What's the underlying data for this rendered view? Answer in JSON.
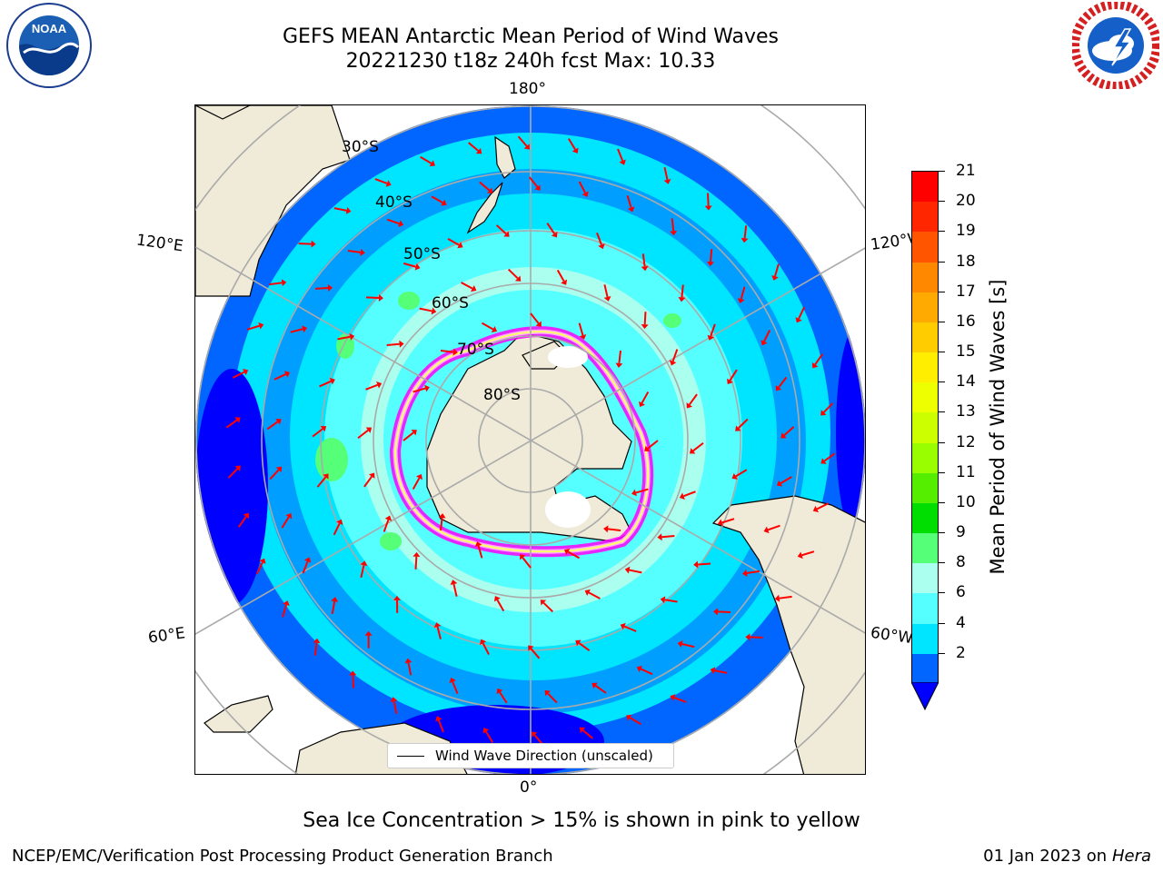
{
  "header": {
    "title_line1": "GEFS MEAN Antarctic Mean Period of Wind Waves",
    "title_line2": "20221230 t18z 240h fcst   Max: 10.33"
  },
  "logos": {
    "left_icon": "noaa-logo",
    "left_text": "NOAA",
    "right_icon": "nws-logo"
  },
  "map": {
    "projection": "south-polar-stereographic",
    "longitude_labels": {
      "top": "180°",
      "bottom": "0°",
      "upper_left": "120°E",
      "upper_right": "120°W",
      "lower_left": "60°E",
      "lower_right": "60°W"
    },
    "latitude_labels": [
      "30°S",
      "40°S",
      "50°S",
      "60°S",
      "70°S",
      "80°S"
    ],
    "land_color": "#efebd8",
    "ocean_colors": {
      "band_2_4": "#0066ff",
      "band_4_6": "#00e5ff",
      "band_6_8": "#55ffff",
      "band_8_9": "#aaffee",
      "band_9_10": "#55ff77",
      "deep_blue": "#0000ff"
    },
    "arrow_color": "#ff0000",
    "sea_ice_colors": [
      "#ff00ff",
      "#ffaaff",
      "#ffff66"
    ],
    "legend_entry": "Wind Wave Direction (unscaled)"
  },
  "colorbar": {
    "label": "Mean Period of Wind Waves [s]",
    "ticks": [
      "21",
      "20",
      "19",
      "18",
      "17",
      "16",
      "15",
      "14",
      "13",
      "12",
      "11",
      "10",
      "9",
      "8",
      "6",
      "4",
      "2"
    ],
    "colors": [
      "#ff0000",
      "#ff2600",
      "#ff5500",
      "#ff8800",
      "#ffaa00",
      "#ffcc00",
      "#ffee00",
      "#eeff00",
      "#ccff00",
      "#99ff00",
      "#55ee00",
      "#00dd00",
      "#55ff77",
      "#aaffee",
      "#55ffff",
      "#00e5ff",
      "#0066ff"
    ],
    "extend_color": "#0000ff"
  },
  "notes": {
    "sea_ice": "Sea Ice Concentration > 15% is shown in pink to yellow"
  },
  "footer": {
    "left": "NCEP/EMC/Verification Post Processing Product Generation Branch",
    "right_date": "01 Jan 2023 on ",
    "right_machine": "Hera"
  }
}
